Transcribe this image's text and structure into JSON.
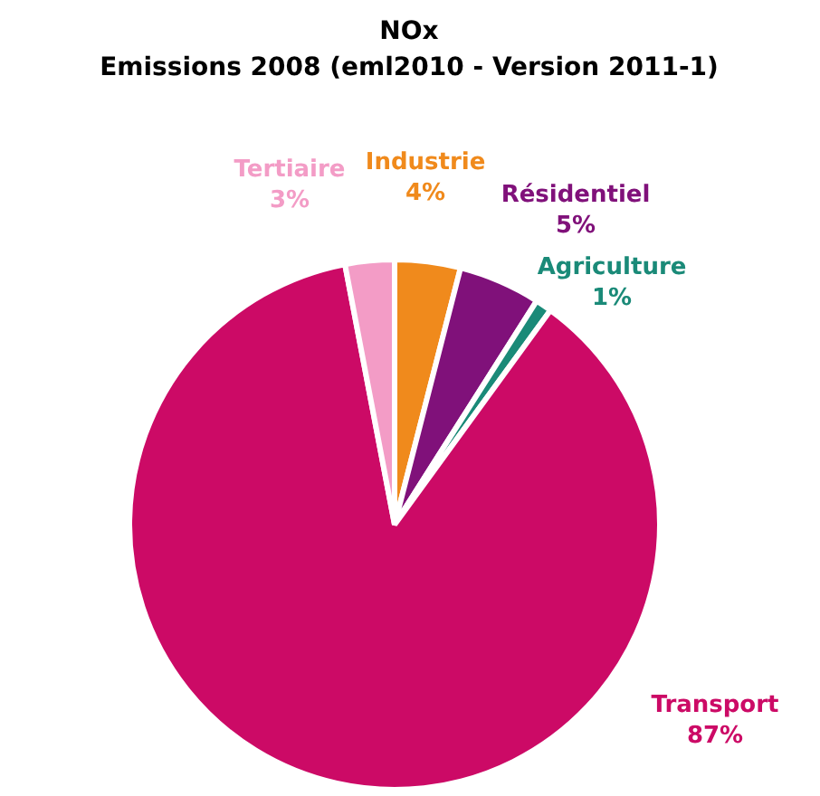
{
  "chart_data": {
    "type": "pie",
    "title": "NOx",
    "subtitle": "Emissions 2008 (eml2010 - Version 2011-1)",
    "categories": [
      "Industrie",
      "Résidentiel",
      "Agriculture",
      "Transport",
      "Tertiaire"
    ],
    "values": [
      4,
      5,
      1,
      87,
      3
    ],
    "value_labels": [
      "4%",
      "5%",
      "1%",
      "87%",
      "3%"
    ],
    "colors": [
      "#f08a1c",
      "#80117a",
      "#1a8a78",
      "#cc0a66",
      "#f39cc6"
    ],
    "legend": false
  }
}
